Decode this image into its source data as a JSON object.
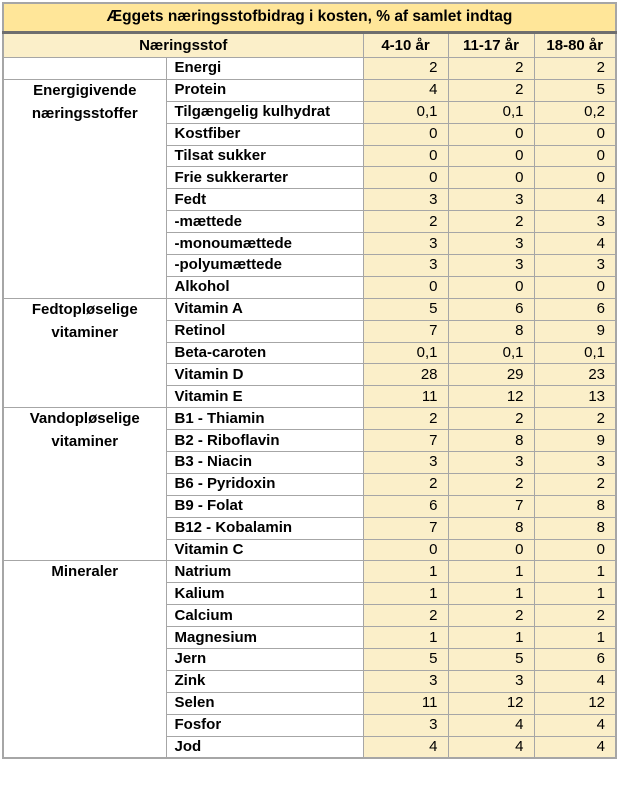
{
  "chart_data": {
    "type": "table",
    "title": "Æggets næringsstofbidrag i kosten, % af samlet indtag",
    "header": {
      "nutrient_label": "Næringsstof",
      "age_groups": [
        "4-10 år",
        "11-17 år",
        "18-80 år"
      ]
    },
    "groups": [
      {
        "category": "",
        "rows": [
          {
            "name": "Energi",
            "values": [
              "2",
              "2",
              "2"
            ]
          }
        ]
      },
      {
        "category": "Energigivende næringsstoffer",
        "rows": [
          {
            "name": "Protein",
            "values": [
              "4",
              "2",
              "5"
            ]
          },
          {
            "name": "Tilgængelig kulhydrat",
            "values": [
              "0,1",
              "0,1",
              "0,2"
            ]
          },
          {
            "name": "Kostfiber",
            "values": [
              "0",
              "0",
              "0"
            ]
          },
          {
            "name": "Tilsat sukker",
            "values": [
              "0",
              "0",
              "0"
            ]
          },
          {
            "name": "Frie sukkerarter",
            "values": [
              "0",
              "0",
              "0"
            ]
          },
          {
            "name": "Fedt",
            "values": [
              "3",
              "3",
              "4"
            ]
          },
          {
            "name": "-mættede",
            "values": [
              "2",
              "2",
              "3"
            ]
          },
          {
            "name": "-monoumættede",
            "values": [
              "3",
              "3",
              "4"
            ]
          },
          {
            "name": "-polyumættede",
            "values": [
              "3",
              "3",
              "3"
            ]
          },
          {
            "name": "Alkohol",
            "values": [
              "0",
              "0",
              "0"
            ]
          }
        ]
      },
      {
        "category": "Fedtopløselige vitaminer",
        "rows": [
          {
            "name": "Vitamin A",
            "values": [
              "5",
              "6",
              "6"
            ]
          },
          {
            "name": "Retinol",
            "values": [
              "7",
              "8",
              "9"
            ]
          },
          {
            "name": "Beta-caroten",
            "values": [
              "0,1",
              "0,1",
              "0,1"
            ]
          },
          {
            "name": "Vitamin D",
            "values": [
              "28",
              "29",
              "23"
            ]
          },
          {
            "name": "Vitamin E",
            "values": [
              "11",
              "12",
              "13"
            ]
          }
        ]
      },
      {
        "category": "Vandopløselige vitaminer",
        "rows": [
          {
            "name": "B1 - Thiamin",
            "values": [
              "2",
              "2",
              "2"
            ]
          },
          {
            "name": "B2 - Riboflavin",
            "values": [
              "7",
              "8",
              "9"
            ]
          },
          {
            "name": "B3 - Niacin",
            "values": [
              "3",
              "3",
              "3"
            ]
          },
          {
            "name": "B6 - Pyridoxin",
            "values": [
              "2",
              "2",
              "2"
            ]
          },
          {
            "name": "B9 - Folat",
            "values": [
              "6",
              "7",
              "8"
            ]
          },
          {
            "name": "B12 - Kobalamin",
            "values": [
              "7",
              "8",
              "8"
            ]
          },
          {
            "name": "Vitamin C",
            "values": [
              "0",
              "0",
              "0"
            ]
          }
        ]
      },
      {
        "category": "Mineraler",
        "rows": [
          {
            "name": "Natrium",
            "values": [
              "1",
              "1",
              "1"
            ]
          },
          {
            "name": "Kalium",
            "values": [
              "1",
              "1",
              "1"
            ]
          },
          {
            "name": "Calcium",
            "values": [
              "2",
              "2",
              "2"
            ]
          },
          {
            "name": "Magnesium",
            "values": [
              "1",
              "1",
              "1"
            ]
          },
          {
            "name": "Jern",
            "values": [
              "5",
              "5",
              "6"
            ]
          },
          {
            "name": "Zink",
            "values": [
              "3",
              "3",
              "4"
            ]
          },
          {
            "name": "Selen",
            "values": [
              "11",
              "12",
              "12"
            ]
          },
          {
            "name": "Fosfor",
            "values": [
              "3",
              "4",
              "4"
            ]
          },
          {
            "name": "Jod",
            "values": [
              "4",
              "4",
              "4"
            ]
          }
        ]
      }
    ],
    "layout": {
      "decimal_separator": ",",
      "values_are_percent_of_total_intake": true,
      "value_alignment": "right",
      "grid": true
    },
    "colors": {
      "title_background": "#FFE699",
      "value_cell_background": "#FBEFC9",
      "label_cell_background": "#FFFFFF",
      "grid_border": "#A6A6A6",
      "title_separator": "#6E6E6E",
      "text": "#000000"
    }
  }
}
